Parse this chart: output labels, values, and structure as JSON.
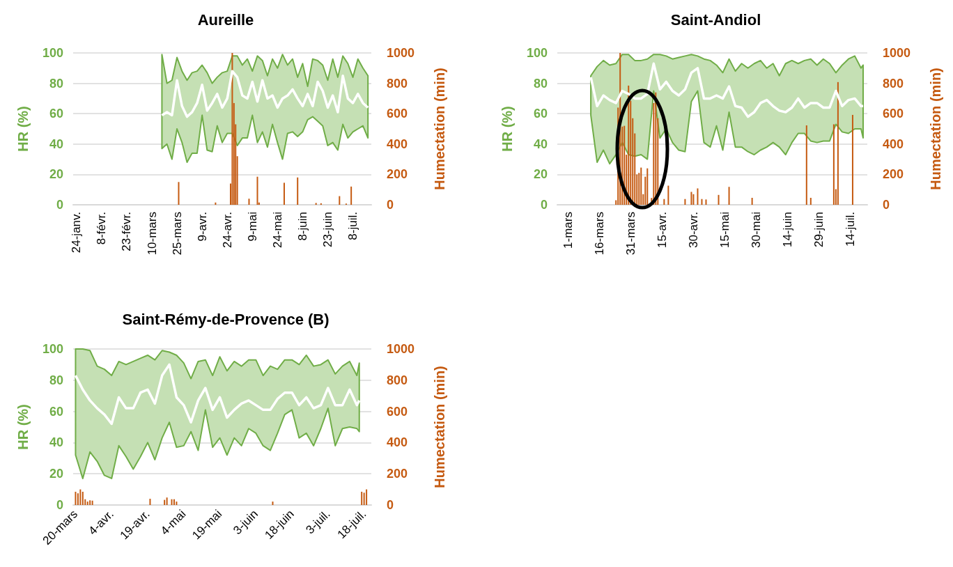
{
  "chart_data": [
    {
      "type": "line",
      "title": "Aureille",
      "ylabel": "HR (%)",
      "y2label": "Humectation (min)",
      "xlim": [
        "--01-22",
        "--07-19"
      ],
      "xticks": [
        {
          "value": "--01-24",
          "label": "24-janv."
        },
        {
          "value": "--02-08",
          "label": "8-févr."
        },
        {
          "value": "--02-23",
          "label": "23-févr."
        },
        {
          "value": "--03-10",
          "label": "10-mars"
        },
        {
          "value": "--03-25",
          "label": "25-mars"
        },
        {
          "value": "--04-09",
          "label": "9-avr."
        },
        {
          "value": "--04-24",
          "label": "24-avr."
        },
        {
          "value": "--05-09",
          "label": "9-mai"
        },
        {
          "value": "--05-24",
          "label": "24-mai"
        },
        {
          "value": "--06-08",
          "label": "8-juin"
        },
        {
          "value": "--06-23",
          "label": "23-juin"
        },
        {
          "value": "--07-08",
          "label": "8-juil."
        }
      ],
      "ylim": [
        0,
        100
      ],
      "yticks": [
        0,
        20,
        40,
        60,
        80,
        100
      ],
      "y2lim": [
        0,
        1000
      ],
      "y2ticks": [
        0,
        200,
        400,
        600,
        800,
        1000
      ],
      "grid": "y",
      "series": [
        {
          "color": "#ffffff",
          "x": [
            "--03-16",
            "--03-19",
            "--03-22",
            "--03-25",
            "--03-28",
            "--03-31",
            "--04-03",
            "--04-06",
            "--04-09",
            "--04-12",
            "--04-15",
            "--04-18",
            "--04-21",
            "--04-24",
            "--04-27",
            "--04-30",
            "--05-03",
            "--05-06",
            "--05-09",
            "--05-12",
            "--05-15",
            "--05-18",
            "--05-21",
            "--05-24",
            "--05-27",
            "--05-30",
            "--06-02",
            "--06-05",
            "--06-08",
            "--06-11",
            "--06-14",
            "--06-17",
            "--06-20",
            "--06-23",
            "--06-26",
            "--06-29",
            "--07-02",
            "--07-05",
            "--07-08",
            "--07-11",
            "--07-14",
            "--07-17"
          ],
          "values": [
            59,
            61,
            59,
            82,
            65,
            58,
            61,
            67,
            79,
            62,
            67,
            73,
            64,
            70,
            88,
            84,
            72,
            70,
            81,
            68,
            82,
            70,
            72,
            64,
            70,
            72,
            76,
            70,
            65,
            73,
            65,
            81,
            75,
            64,
            72,
            61,
            85,
            70,
            67,
            73,
            67,
            64
          ],
          "lower": [
            37,
            40,
            30,
            50,
            41,
            28,
            34,
            34,
            59,
            36,
            35,
            52,
            41,
            47,
            47,
            39,
            44,
            44,
            59,
            41,
            48,
            38,
            53,
            41,
            30,
            47,
            48,
            45,
            48,
            56,
            58,
            55,
            52,
            39,
            41,
            36,
            53,
            44,
            48,
            50,
            52,
            44
          ],
          "upper": [
            99,
            80,
            82,
            97,
            88,
            82,
            87,
            88,
            92,
            87,
            80,
            84,
            87,
            88,
            98,
            98,
            92,
            96,
            88,
            98,
            95,
            85,
            96,
            90,
            99,
            92,
            96,
            84,
            93,
            78,
            96,
            95,
            92,
            82,
            96,
            84,
            98,
            93,
            84,
            96,
            90,
            85
          ]
        },
        {
          "type": "bar",
          "axis": "y2",
          "color": "#c55a11",
          "x": [
            "--03-26",
            "--04-17",
            "--04-26",
            "--04-27",
            "--04-28",
            "--04-29",
            "--04-30",
            "--05-07",
            "--05-12",
            "--05-13",
            "--05-28",
            "--06-05",
            "--06-16",
            "--06-19",
            "--06-30",
            "--07-04",
            "--07-07"
          ],
          "values": [
            150,
            15,
            140,
            1000,
            670,
            530,
            320,
            40,
            185,
            15,
            145,
            180,
            12,
            10,
            57,
            8,
            120
          ]
        }
      ]
    },
    {
      "type": "line",
      "title": "Saint-Andiol",
      "ylabel": "HR (%)",
      "y2label": "Humectation (min)",
      "xlim": [
        "--02-24",
        "--07-22"
      ],
      "xticks": [
        {
          "value": "--03-01",
          "label": "1-mars"
        },
        {
          "value": "--03-16",
          "label": "16-mars"
        },
        {
          "value": "--03-31",
          "label": "31-mars"
        },
        {
          "value": "--04-15",
          "label": "15-avr."
        },
        {
          "value": "--04-30",
          "label": "30-avr."
        },
        {
          "value": "--05-15",
          "label": "15-mai"
        },
        {
          "value": "--05-30",
          "label": "30-mai"
        },
        {
          "value": "--06-14",
          "label": "14-juin"
        },
        {
          "value": "--06-29",
          "label": "29-juin"
        },
        {
          "value": "--07-14",
          "label": "14-juil."
        }
      ],
      "ylim": [
        0,
        100
      ],
      "yticks": [
        0,
        20,
        40,
        60,
        80,
        100
      ],
      "y2lim": [
        0,
        1000
      ],
      "y2ticks": [
        0,
        200,
        400,
        600,
        800,
        1000
      ],
      "grid": "y",
      "series": [
        {
          "color": "#ffffff",
          "x": [
            "--03-12",
            "--03-15",
            "--03-18",
            "--03-21",
            "--03-24",
            "--03-27",
            "--03-30",
            "--04-02",
            "--04-05",
            "--04-08",
            "--04-11",
            "--04-14",
            "--04-17",
            "--04-20",
            "--04-23",
            "--04-26",
            "--04-29",
            "--05-02",
            "--05-05",
            "--05-08",
            "--05-11",
            "--05-14",
            "--05-17",
            "--05-20",
            "--05-23",
            "--05-26",
            "--05-29",
            "--06-01",
            "--06-04",
            "--06-07",
            "--06-10",
            "--06-13",
            "--06-16",
            "--06-19",
            "--06-22",
            "--06-25",
            "--06-28",
            "--07-01",
            "--07-04",
            "--07-07",
            "--07-10",
            "--07-13",
            "--07-16",
            "--07-19",
            "--07-20"
          ],
          "values": [
            84,
            65,
            72,
            69,
            67,
            75,
            73,
            70,
            70,
            73,
            93,
            76,
            81,
            75,
            72,
            76,
            87,
            90,
            70,
            70,
            72,
            70,
            78,
            65,
            64,
            58,
            61,
            67,
            69,
            65,
            62,
            61,
            64,
            70,
            64,
            67,
            67,
            64,
            64,
            75,
            65,
            69,
            70,
            65,
            65
          ],
          "lower": [
            59,
            28,
            36,
            27,
            33,
            41,
            33,
            32,
            33,
            30,
            75,
            44,
            50,
            41,
            36,
            35,
            68,
            75,
            41,
            38,
            52,
            36,
            61,
            38,
            38,
            35,
            33,
            36,
            38,
            41,
            38,
            33,
            41,
            47,
            47,
            42,
            41,
            42,
            42,
            53,
            48,
            47,
            50,
            50,
            44
          ],
          "upper": [
            85,
            91,
            95,
            92,
            93,
            99,
            99,
            95,
            95,
            96,
            99,
            99,
            98,
            96,
            97,
            98,
            99,
            98,
            96,
            95,
            92,
            87,
            96,
            88,
            93,
            90,
            93,
            95,
            90,
            93,
            85,
            93,
            95,
            93,
            95,
            96,
            92,
            96,
            93,
            87,
            92,
            96,
            98,
            90,
            92
          ]
        },
        {
          "type": "bar",
          "axis": "y2",
          "color": "#c55a11",
          "x": [
            "--03-24",
            "--03-25",
            "--03-26",
            "--03-27",
            "--03-28",
            "--03-29",
            "--03-30",
            "--03-31",
            "--04-01",
            "--04-02",
            "--04-03",
            "--04-04",
            "--04-05",
            "--04-06",
            "--04-07",
            "--04-08",
            "--04-10",
            "--04-11",
            "--04-12",
            "--04-13",
            "--04-16",
            "--04-18",
            "--04-26",
            "--04-29",
            "--04-30",
            "--05-02",
            "--05-04",
            "--05-06",
            "--05-12",
            "--05-17",
            "--05-28",
            "--06-23",
            "--06-25",
            "--07-06",
            "--07-07",
            "--07-08",
            "--07-15"
          ],
          "values": [
            30,
            640,
            1000,
            515,
            520,
            330,
            785,
            685,
            570,
            470,
            200,
            210,
            245,
            70,
            185,
            240,
            45,
            670,
            740,
            570,
            38,
            126,
            38,
            85,
            70,
            108,
            38,
            35,
            65,
            118,
            46,
            523,
            46,
            530,
            103,
            808,
            592
          ]
        }
      ]
    },
    {
      "type": "line",
      "title": "Saint-Rémy-de-Provence (B)",
      "ylabel": "HR (%)",
      "y2label": "Humectation (min)",
      "xlim": [
        "--03-19",
        "--07-21"
      ],
      "xticks": [
        {
          "value": "--03-20",
          "label": "20-mars"
        },
        {
          "value": "--04-04",
          "label": "4-avr."
        },
        {
          "value": "--04-19",
          "label": "19-avr."
        },
        {
          "value": "--05-04",
          "label": "4-mai"
        },
        {
          "value": "--05-19",
          "label": "19-mai"
        },
        {
          "value": "--06-03",
          "label": "3-juin"
        },
        {
          "value": "--06-18",
          "label": "18-juin"
        },
        {
          "value": "--07-03",
          "label": "3-juil."
        },
        {
          "value": "--07-18",
          "label": "18-juil."
        }
      ],
      "ylim": [
        0,
        100
      ],
      "yticks": [
        0,
        20,
        40,
        60,
        80,
        100
      ],
      "y2lim": [
        0,
        1000
      ],
      "y2ticks": [
        0,
        200,
        400,
        600,
        800,
        1000
      ],
      "grid": "y",
      "series": [
        {
          "color": "#ffffff",
          "x": [
            "--03-20",
            "--03-23",
            "--03-26",
            "--03-29",
            "--04-01",
            "--04-04",
            "--04-07",
            "--04-10",
            "--04-13",
            "--04-16",
            "--04-19",
            "--04-22",
            "--04-25",
            "--04-28",
            "--05-01",
            "--05-04",
            "--05-07",
            "--05-10",
            "--05-13",
            "--05-16",
            "--05-19",
            "--05-22",
            "--05-25",
            "--05-28",
            "--05-31",
            "--06-03",
            "--06-06",
            "--06-09",
            "--06-12",
            "--06-15",
            "--06-18",
            "--06-21",
            "--06-24",
            "--06-27",
            "--06-30",
            "--07-03",
            "--07-06",
            "--07-09",
            "--07-12",
            "--07-15",
            "--07-16"
          ],
          "values": [
            83,
            74,
            67,
            62,
            58,
            52,
            69,
            62,
            62,
            72,
            74,
            65,
            83,
            90,
            69,
            64,
            53,
            67,
            75,
            61,
            69,
            56,
            61,
            65,
            67,
            64,
            61,
            61,
            68,
            72,
            72,
            64,
            69,
            62,
            64,
            75,
            64,
            64,
            74,
            64,
            67
          ],
          "lower": [
            32,
            17,
            34,
            28,
            19,
            17,
            38,
            31,
            23,
            31,
            40,
            29,
            43,
            53,
            37,
            38,
            47,
            35,
            61,
            37,
            43,
            32,
            43,
            38,
            49,
            46,
            38,
            35,
            46,
            58,
            61,
            43,
            46,
            38,
            49,
            62,
            38,
            49,
            50,
            49,
            47
          ],
          "upper": [
            100,
            100,
            99,
            89,
            87,
            83,
            92,
            90,
            92,
            94,
            96,
            93,
            99,
            98,
            96,
            91,
            81,
            92,
            93,
            83,
            95,
            86,
            92,
            89,
            93,
            93,
            83,
            89,
            87,
            93,
            93,
            90,
            96,
            89,
            90,
            93,
            84,
            89,
            92,
            83,
            91
          ]
        },
        {
          "type": "bar",
          "axis": "y2",
          "color": "#c55a11",
          "x": [
            "--03-20",
            "--03-21",
            "--03-22",
            "--03-23",
            "--03-24",
            "--03-25",
            "--03-26",
            "--03-27",
            "--04-20",
            "--04-26",
            "--04-27",
            "--04-29",
            "--04-30",
            "--05-01",
            "--06-10",
            "--07-17",
            "--07-18",
            "--07-19"
          ],
          "values": [
            85,
            75,
            100,
            85,
            37,
            22,
            30,
            28,
            40,
            33,
            48,
            37,
            37,
            22,
            22,
            85,
            79,
            100
          ]
        }
      ]
    }
  ]
}
